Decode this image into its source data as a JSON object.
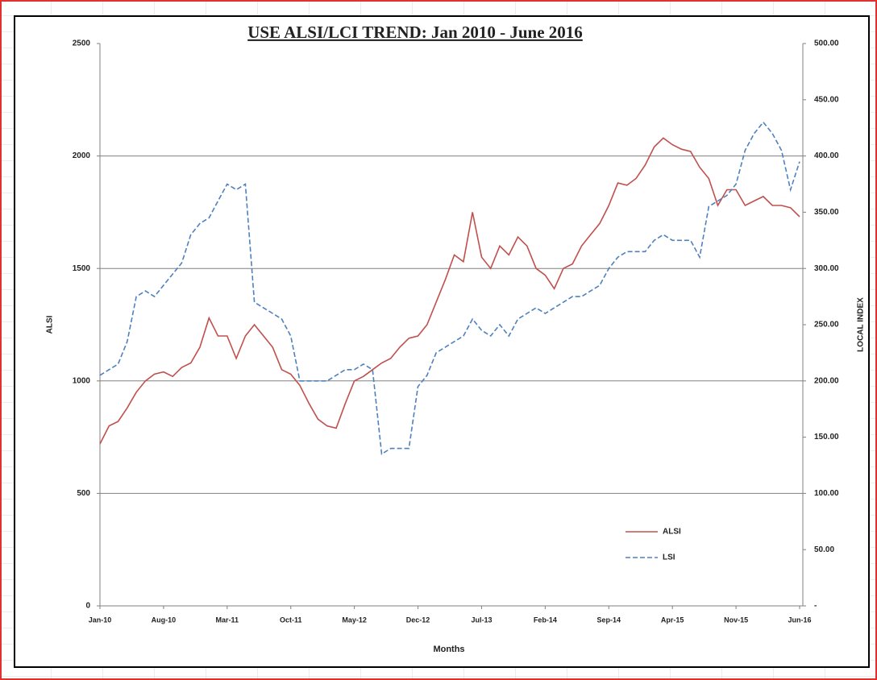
{
  "chart_data": {
    "type": "line",
    "title": "USE ALSI/LCI TREND: Jan 2010 - June  2016",
    "xlabel": "Months",
    "ylabel": "ALSI",
    "y2label": "LOCAL INDEX",
    "categories": [
      "Jan-10",
      null,
      null,
      null,
      null,
      null,
      null,
      "Aug-10",
      null,
      null,
      null,
      null,
      null,
      null,
      "Mar-11",
      null,
      null,
      null,
      null,
      null,
      null,
      "Oct-11",
      null,
      null,
      null,
      null,
      null,
      null,
      "May-12",
      null,
      null,
      null,
      null,
      null,
      null,
      "Dec-12",
      null,
      null,
      null,
      null,
      null,
      null,
      "Jul-13",
      null,
      null,
      null,
      null,
      null,
      null,
      "Feb-14",
      null,
      null,
      null,
      null,
      null,
      null,
      "Sep-14",
      null,
      null,
      null,
      null,
      null,
      null,
      "Apr-15",
      null,
      null,
      null,
      null,
      null,
      null,
      "Nov-15",
      null,
      null,
      null,
      null,
      null,
      null,
      "Jun-16"
    ],
    "series": [
      {
        "name": "ALSI",
        "color": "#c0504d",
        "dash": "solid",
        "values": [
          720,
          800,
          820,
          880,
          950,
          1000,
          1030,
          1040,
          1020,
          1060,
          1080,
          1150,
          1280,
          1200,
          1200,
          1100,
          1200,
          1250,
          1200,
          1150,
          1050,
          1030,
          980,
          900,
          830,
          800,
          790,
          900,
          1000,
          1020,
          1050,
          1080,
          1100,
          1150,
          1190,
          1200,
          1250,
          1350,
          1450,
          1560,
          1530,
          1750,
          1550,
          1500,
          1600,
          1560,
          1640,
          1600,
          1500,
          1470,
          1410,
          1500,
          1520,
          1600,
          1650,
          1700,
          1780,
          1880,
          1870,
          1900,
          1960,
          2040,
          2080,
          2050,
          2030,
          2020,
          1950,
          1900,
          1780,
          1850,
          1850,
          1780,
          1800,
          1820,
          1780,
          1780,
          1770,
          1730
        ]
      },
      {
        "name": "LSI",
        "color": "#4f81bd",
        "dash": "dashed",
        "axis": "y2",
        "values": [
          205,
          210,
          215,
          235,
          275,
          280,
          275,
          285,
          295,
          305,
          330,
          340,
          345,
          360,
          375,
          370,
          375,
          270,
          265,
          260,
          255,
          240,
          200,
          200,
          200,
          200,
          205,
          210,
          210,
          215,
          210,
          135,
          140,
          140,
          140,
          195,
          205,
          225,
          230,
          235,
          240,
          255,
          245,
          240,
          250,
          240,
          255,
          260,
          265,
          260,
          265,
          270,
          275,
          275,
          280,
          285,
          300,
          310,
          315,
          315,
          315,
          325,
          330,
          325,
          325,
          325,
          310,
          355,
          360,
          365,
          375,
          405,
          420,
          430,
          420,
          405,
          370,
          395
        ]
      }
    ],
    "ylim": [
      0,
      2500
    ],
    "yticks": [
      0,
      500,
      1000,
      1500,
      2000,
      2500
    ],
    "y2lim": [
      0,
      500
    ],
    "y2ticks": [
      {
        "value": 0,
        "label": "-"
      },
      {
        "value": 50,
        "label": "50.00"
      },
      {
        "value": 100,
        "label": "100.00"
      },
      {
        "value": 150,
        "label": "150.00"
      },
      {
        "value": 200,
        "label": "200.00"
      },
      {
        "value": 250,
        "label": "250.00"
      },
      {
        "value": 300,
        "label": "300.00"
      },
      {
        "value": 350,
        "label": "350.00"
      },
      {
        "value": 400,
        "label": "400.00"
      },
      {
        "value": 450,
        "label": "450.00"
      },
      {
        "value": 500,
        "label": "500.00"
      }
    ],
    "grid": true,
    "legend": "lower right"
  }
}
